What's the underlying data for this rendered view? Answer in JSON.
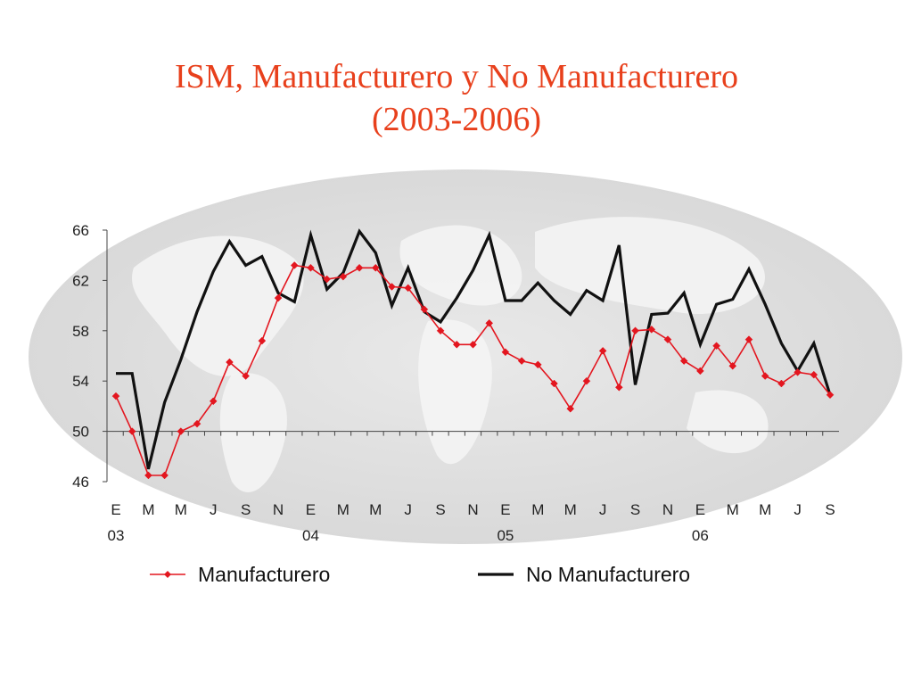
{
  "chart_data": {
    "type": "line",
    "title": "ISM, Manufacturero y No Manufacturero",
    "subtitle": "(2003-2006)",
    "ylim": [
      46,
      66
    ],
    "yticks": [
      46,
      50,
      54,
      58,
      62,
      66
    ],
    "x_labels": [
      "E",
      "M",
      "M",
      "J",
      "S",
      "N",
      "E",
      "M",
      "M",
      "J",
      "S",
      "N",
      "E",
      "M",
      "M",
      "J",
      "S",
      "N",
      "E",
      "M",
      "M",
      "J",
      "S"
    ],
    "year_labels": [
      "03",
      "04",
      "05",
      "06"
    ],
    "legend_position": "bottom",
    "grid": false,
    "series": [
      {
        "name": "Manufacturero",
        "color": "#e3161f",
        "marker": "diamond",
        "values": [
          52.8,
          50.0,
          46.5,
          46.5,
          50.0,
          50.6,
          52.4,
          55.5,
          54.4,
          57.2,
          60.6,
          63.2,
          63.0,
          62.1,
          62.3,
          63.0,
          63.0,
          61.5,
          61.4,
          59.7,
          58.0,
          56.9,
          56.9,
          58.6,
          56.3,
          55.6,
          55.3,
          53.8,
          51.8,
          54.0,
          56.4,
          53.5,
          58.0,
          58.1,
          57.3,
          55.6,
          54.8,
          56.8,
          55.2,
          57.3,
          54.4,
          53.8,
          54.7,
          54.5,
          52.9
        ]
      },
      {
        "name": "No Manufacturero",
        "color": "#111111",
        "marker": "none",
        "values": [
          54.6,
          54.6,
          47.0,
          52.3,
          55.7,
          59.5,
          62.7,
          65.1,
          63.2,
          63.9,
          61.0,
          60.3,
          65.6,
          61.3,
          62.6,
          65.9,
          64.2,
          60.0,
          63.0,
          59.5,
          58.7,
          60.6,
          62.8,
          65.6,
          60.4,
          60.4,
          61.8,
          60.4,
          59.3,
          61.2,
          60.4,
          64.8,
          53.7,
          59.3,
          59.4,
          61.0,
          56.9,
          60.1,
          60.5,
          62.9,
          60.1,
          57.0,
          54.8,
          57.0,
          52.9
        ]
      }
    ]
  }
}
